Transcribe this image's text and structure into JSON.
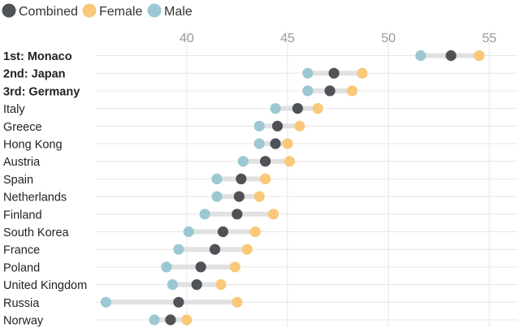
{
  "chart_data": {
    "type": "dot-range",
    "legend": {
      "placement": "top-left",
      "items": [
        {
          "key": "combined",
          "label": "Combined",
          "color": "#4f5256"
        },
        {
          "key": "female",
          "label": "Female",
          "color": "#f9c879"
        },
        {
          "key": "male",
          "label": "Male",
          "color": "#9cc8d3"
        }
      ]
    },
    "x_axis": {
      "ticks": [
        40,
        45,
        50,
        55
      ],
      "tick_labels": [
        "40",
        "45",
        "50",
        "55"
      ],
      "range": [
        35.5,
        56.4
      ],
      "position": "top",
      "grid": true
    },
    "range_bar_color": "#e1e1e1",
    "grid_color": "#e6e6e6",
    "rows": [
      {
        "label": "1st: Monaco",
        "bold": true,
        "male": 51.6,
        "combined": 53.1,
        "female": 54.5
      },
      {
        "label": "2nd: Japan",
        "bold": true,
        "male": 46.0,
        "combined": 47.3,
        "female": 48.7
      },
      {
        "label": "3rd: Germany",
        "bold": true,
        "male": 46.0,
        "combined": 47.1,
        "female": 48.2
      },
      {
        "label": "Italy",
        "bold": false,
        "male": 44.4,
        "combined": 45.5,
        "female": 46.5
      },
      {
        "label": "Greece",
        "bold": false,
        "male": 43.6,
        "combined": 44.5,
        "female": 45.6
      },
      {
        "label": "Hong Kong",
        "bold": false,
        "male": 43.6,
        "combined": 44.4,
        "female": 45.0
      },
      {
        "label": "Austria",
        "bold": false,
        "male": 42.8,
        "combined": 43.9,
        "female": 45.1
      },
      {
        "label": "Spain",
        "bold": false,
        "male": 41.5,
        "combined": 42.7,
        "female": 43.9
      },
      {
        "label": "Netherlands",
        "bold": false,
        "male": 41.5,
        "combined": 42.6,
        "female": 43.6
      },
      {
        "label": "Finland",
        "bold": false,
        "male": 40.9,
        "combined": 42.5,
        "female": 44.3
      },
      {
        "label": "South Korea",
        "bold": false,
        "male": 40.1,
        "combined": 41.8,
        "female": 43.4
      },
      {
        "label": "France",
        "bold": false,
        "male": 39.6,
        "combined": 41.4,
        "female": 43.0
      },
      {
        "label": "Poland",
        "bold": false,
        "male": 39.0,
        "combined": 40.7,
        "female": 42.4
      },
      {
        "label": "United Kingdom",
        "bold": false,
        "male": 39.3,
        "combined": 40.5,
        "female": 41.7
      },
      {
        "label": "Russia",
        "bold": false,
        "male": 36.0,
        "combined": 39.6,
        "female": 42.5
      },
      {
        "label": "Norway",
        "bold": false,
        "male": 38.4,
        "combined": 39.2,
        "female": 40.0
      }
    ]
  }
}
